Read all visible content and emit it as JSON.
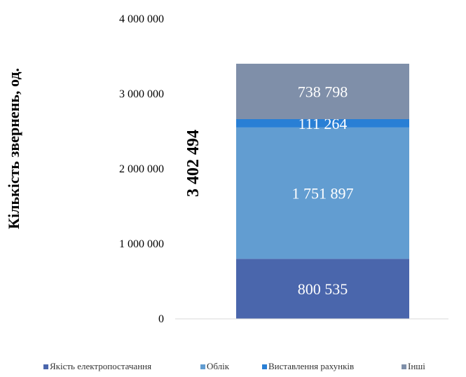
{
  "chart_data": {
    "type": "bar",
    "stacked": true,
    "categories": [
      ""
    ],
    "ylabel": "Кількість звернень, од.",
    "ylim": [
      0,
      4000000
    ],
    "yticks": [
      {
        "value": 0,
        "label": "0"
      },
      {
        "value": 1000000,
        "label": "1 000 000"
      },
      {
        "value": 2000000,
        "label": "2 000 000"
      },
      {
        "value": 3000000,
        "label": "3 000 000"
      },
      {
        "value": 4000000,
        "label": "4 000 000"
      }
    ],
    "grid": false,
    "legend": "bottom",
    "total_value": 3402494,
    "total_label": "3 402 494",
    "series": [
      {
        "name": "Якість електропостачання",
        "values": [
          800535
        ],
        "label": "800 535",
        "color": "#4A66AC"
      },
      {
        "name": "Облік",
        "values": [
          1751897
        ],
        "label": "1 751 897",
        "color": "#629DD1"
      },
      {
        "name": "Виставлення рахунків",
        "values": [
          111264
        ],
        "label": "111 264",
        "color": "#297FD5"
      },
      {
        "name": "Інші",
        "values": [
          738798
        ],
        "label": "738 798",
        "color": "#7F8FA9"
      }
    ]
  }
}
